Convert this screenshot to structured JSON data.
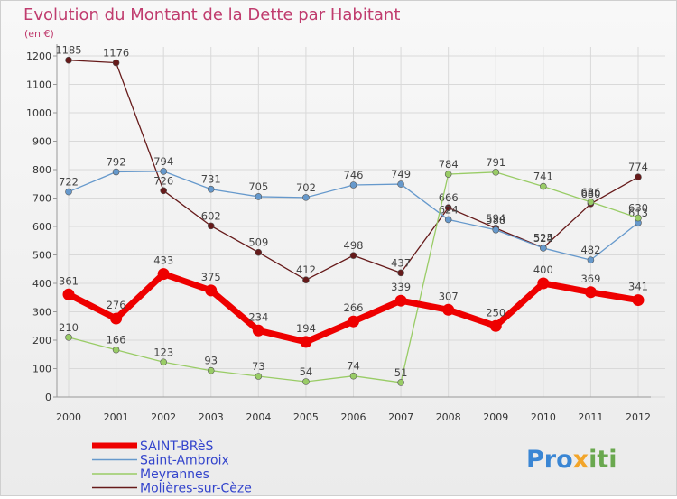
{
  "chart_data": {
    "type": "line",
    "title": "Evolution du Montant de la Dette par Habitant",
    "unit_label": "(en €)",
    "x": [
      "2000",
      "2001",
      "2002",
      "2003",
      "2004",
      "2005",
      "2006",
      "2007",
      "2008",
      "2009",
      "2010",
      "2011",
      "2012"
    ],
    "ylim": [
      0,
      1200
    ],
    "y_ticks": [
      0,
      100,
      200,
      300,
      400,
      500,
      600,
      700,
      800,
      900,
      1000,
      1100,
      1200
    ],
    "grid": true,
    "legend_position": "bottom-left",
    "series": [
      {
        "name": "SAINT-BRèS",
        "color": "#ee0000",
        "values": [
          361,
          276,
          433,
          375,
          234,
          194,
          266,
          339,
          307,
          250,
          400,
          369,
          341
        ]
      },
      {
        "name": "Saint-Ambroix",
        "color": "#6699cc",
        "values": [
          722,
          792,
          794,
          731,
          705,
          702,
          746,
          749,
          624,
          588,
          524,
          482,
          613
        ]
      },
      {
        "name": "Meyrannes",
        "color": "#99cc66",
        "values": [
          210,
          166,
          123,
          93,
          73,
          54,
          74,
          51,
          784,
          791,
          741,
          686,
          630
        ]
      },
      {
        "name": "Molières-sur-Cèze",
        "color": "#661a1a",
        "values": [
          1185,
          1176,
          726,
          602,
          509,
          412,
          498,
          437,
          666,
          594,
          525,
          680,
          774
        ]
      }
    ]
  },
  "brand": {
    "prefix": "Pro",
    "mid": "x",
    "suffix": "iti"
  }
}
